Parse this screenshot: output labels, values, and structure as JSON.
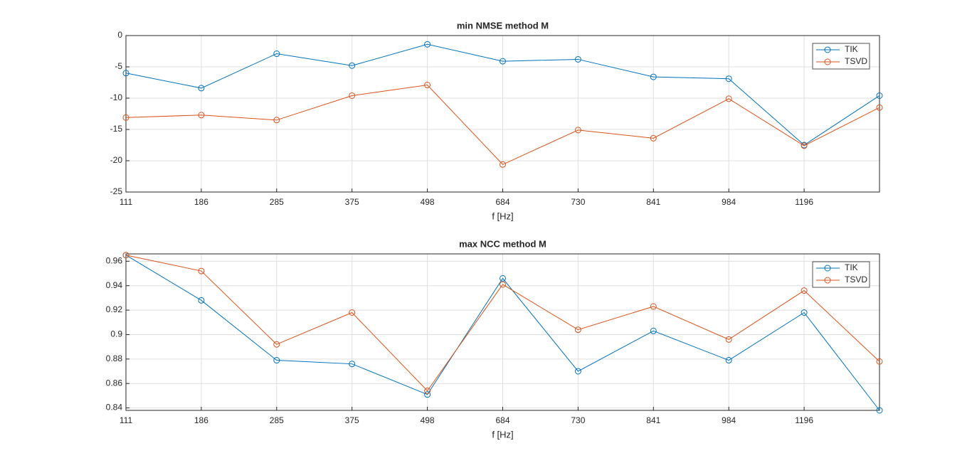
{
  "chart_data": [
    {
      "type": "line",
      "title": "min NMSE method M",
      "x_label": "f [Hz]",
      "categories": [
        "111",
        "186",
        "285",
        "375",
        "498",
        "684",
        "730",
        "841",
        "984",
        "1196",
        null
      ],
      "ylim": [
        -25,
        0
      ],
      "yticks": [
        -25,
        -20,
        -15,
        -10,
        -5,
        0
      ],
      "grid": true,
      "legend": "northeast",
      "series": [
        {
          "name": "TIK",
          "color": "#0072bd",
          "values": [
            -6.0,
            -8.4,
            -2.9,
            -4.8,
            -1.4,
            -4.1,
            -3.8,
            -6.6,
            -6.9,
            -17.5,
            -9.6
          ]
        },
        {
          "name": "TSVD",
          "color": "#d95319",
          "values": [
            -13.1,
            -12.7,
            -13.5,
            -9.6,
            -7.9,
            -20.6,
            -15.1,
            -16.4,
            -10.1,
            -17.6,
            -11.5
          ]
        }
      ]
    },
    {
      "type": "line",
      "title": "max NCC method M",
      "x_label": "f [Hz]",
      "categories": [
        "111",
        "186",
        "285",
        "375",
        "498",
        "684",
        "730",
        "841",
        "984",
        "1196",
        null
      ],
      "ylim": [
        0.838,
        0.966
      ],
      "yticks": [
        0.84,
        0.86,
        0.88,
        0.9,
        0.92,
        0.94,
        0.96
      ],
      "grid": true,
      "legend": "northeast",
      "series": [
        {
          "name": "TIK",
          "color": "#0072bd",
          "values": [
            0.965,
            0.928,
            0.879,
            0.876,
            0.851,
            0.946,
            0.87,
            0.903,
            0.879,
            0.918,
            0.838
          ]
        },
        {
          "name": "TSVD",
          "color": "#d95319",
          "values": [
            0.965,
            0.952,
            0.892,
            0.918,
            0.854,
            0.941,
            0.904,
            0.923,
            0.896,
            0.936,
            0.878
          ]
        }
      ]
    }
  ]
}
